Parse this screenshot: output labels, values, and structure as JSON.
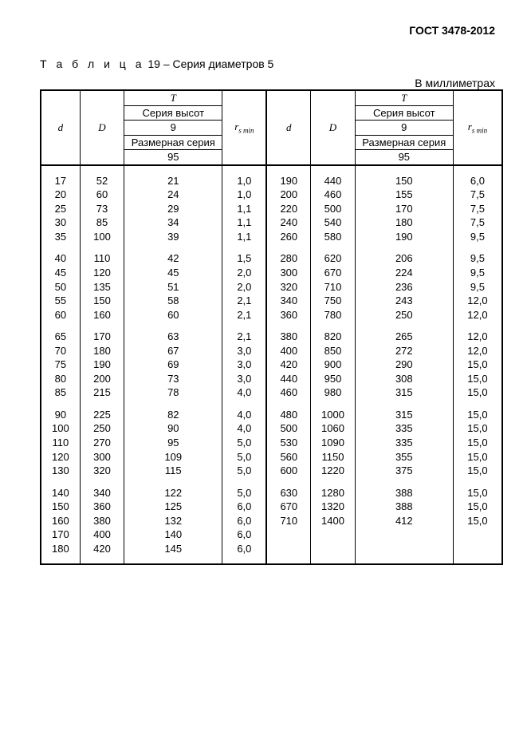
{
  "doc_header": "ГОСТ 3478-2012",
  "caption_label": "Т а б л и ц а",
  "caption_num": "19",
  "caption_title": "Серия диаметров 5",
  "units_label": "В миллиметрах",
  "head": {
    "d": "d",
    "D": "D",
    "T": "T",
    "series_height": "Серия высот",
    "height_val": "9",
    "size_series": "Размерная серия",
    "size_val": "95",
    "rsmin_r": "r",
    "rsmin_sub": "s min"
  },
  "left_groups": [
    [
      {
        "d": "17",
        "D": "52",
        "T": "21",
        "r": "1,0"
      },
      {
        "d": "20",
        "D": "60",
        "T": "24",
        "r": "1,0"
      },
      {
        "d": "25",
        "D": "73",
        "T": "29",
        "r": "1,1"
      },
      {
        "d": "30",
        "D": "85",
        "T": "34",
        "r": "1,1"
      },
      {
        "d": "35",
        "D": "100",
        "T": "39",
        "r": "1,1"
      }
    ],
    [
      {
        "d": "40",
        "D": "110",
        "T": "42",
        "r": "1,5"
      },
      {
        "d": "45",
        "D": "120",
        "T": "45",
        "r": "2,0"
      },
      {
        "d": "50",
        "D": "135",
        "T": "51",
        "r": "2,0"
      },
      {
        "d": "55",
        "D": "150",
        "T": "58",
        "r": "2,1"
      },
      {
        "d": "60",
        "D": "160",
        "T": "60",
        "r": "2,1"
      }
    ],
    [
      {
        "d": "65",
        "D": "170",
        "T": "63",
        "r": "2,1"
      },
      {
        "d": "70",
        "D": "180",
        "T": "67",
        "r": "3,0"
      },
      {
        "d": "75",
        "D": "190",
        "T": "69",
        "r": "3,0"
      },
      {
        "d": "80",
        "D": "200",
        "T": "73",
        "r": "3,0"
      },
      {
        "d": "85",
        "D": "215",
        "T": "78",
        "r": "4,0"
      }
    ],
    [
      {
        "d": "90",
        "D": "225",
        "T": "82",
        "r": "4,0"
      },
      {
        "d": "100",
        "D": "250",
        "T": "90",
        "r": "4,0"
      },
      {
        "d": "110",
        "D": "270",
        "T": "95",
        "r": "5,0"
      },
      {
        "d": "120",
        "D": "300",
        "T": "109",
        "r": "5,0"
      },
      {
        "d": "130",
        "D": "320",
        "T": "115",
        "r": "5,0"
      }
    ],
    [
      {
        "d": "140",
        "D": "340",
        "T": "122",
        "r": "5,0"
      },
      {
        "d": "150",
        "D": "360",
        "T": "125",
        "r": "6,0"
      },
      {
        "d": "160",
        "D": "380",
        "T": "132",
        "r": "6,0"
      },
      {
        "d": "170",
        "D": "400",
        "T": "140",
        "r": "6,0"
      },
      {
        "d": "180",
        "D": "420",
        "T": "145",
        "r": "6,0"
      }
    ]
  ],
  "right_groups": [
    [
      {
        "d": "190",
        "D": "440",
        "T": "150",
        "r": "6,0"
      },
      {
        "d": "200",
        "D": "460",
        "T": "155",
        "r": "7,5"
      },
      {
        "d": "220",
        "D": "500",
        "T": "170",
        "r": "7,5"
      },
      {
        "d": "240",
        "D": "540",
        "T": "180",
        "r": "7,5"
      },
      {
        "d": "260",
        "D": "580",
        "T": "190",
        "r": "9,5"
      }
    ],
    [
      {
        "d": "280",
        "D": "620",
        "T": "206",
        "r": "9,5"
      },
      {
        "d": "300",
        "D": "670",
        "T": "224",
        "r": "9,5"
      },
      {
        "d": "320",
        "D": "710",
        "T": "236",
        "r": "9,5"
      },
      {
        "d": "340",
        "D": "750",
        "T": "243",
        "r": "12,0"
      },
      {
        "d": "360",
        "D": "780",
        "T": "250",
        "r": "12,0"
      }
    ],
    [
      {
        "d": "380",
        "D": "820",
        "T": "265",
        "r": "12,0"
      },
      {
        "d": "400",
        "D": "850",
        "T": "272",
        "r": "12,0"
      },
      {
        "d": "420",
        "D": "900",
        "T": "290",
        "r": "15,0"
      },
      {
        "d": "440",
        "D": "950",
        "T": "308",
        "r": "15,0"
      },
      {
        "d": "460",
        "D": "980",
        "T": "315",
        "r": "15,0"
      }
    ],
    [
      {
        "d": "480",
        "D": "1000",
        "T": "315",
        "r": "15,0"
      },
      {
        "d": "500",
        "D": "1060",
        "T": "335",
        "r": "15,0"
      },
      {
        "d": "530",
        "D": "1090",
        "T": "335",
        "r": "15,0"
      },
      {
        "d": "560",
        "D": "1150",
        "T": "355",
        "r": "15,0"
      },
      {
        "d": "600",
        "D": "1220",
        "T": "375",
        "r": "15,0"
      }
    ],
    [
      {
        "d": "630",
        "D": "1280",
        "T": "388",
        "r": "15,0"
      },
      {
        "d": "670",
        "D": "1320",
        "T": "388",
        "r": "15,0"
      },
      {
        "d": "710",
        "D": "1400",
        "T": "412",
        "r": "15,0"
      },
      {
        "d": "",
        "D": "",
        "T": "",
        "r": ""
      },
      {
        "d": "",
        "D": "",
        "T": "",
        "r": ""
      }
    ]
  ]
}
